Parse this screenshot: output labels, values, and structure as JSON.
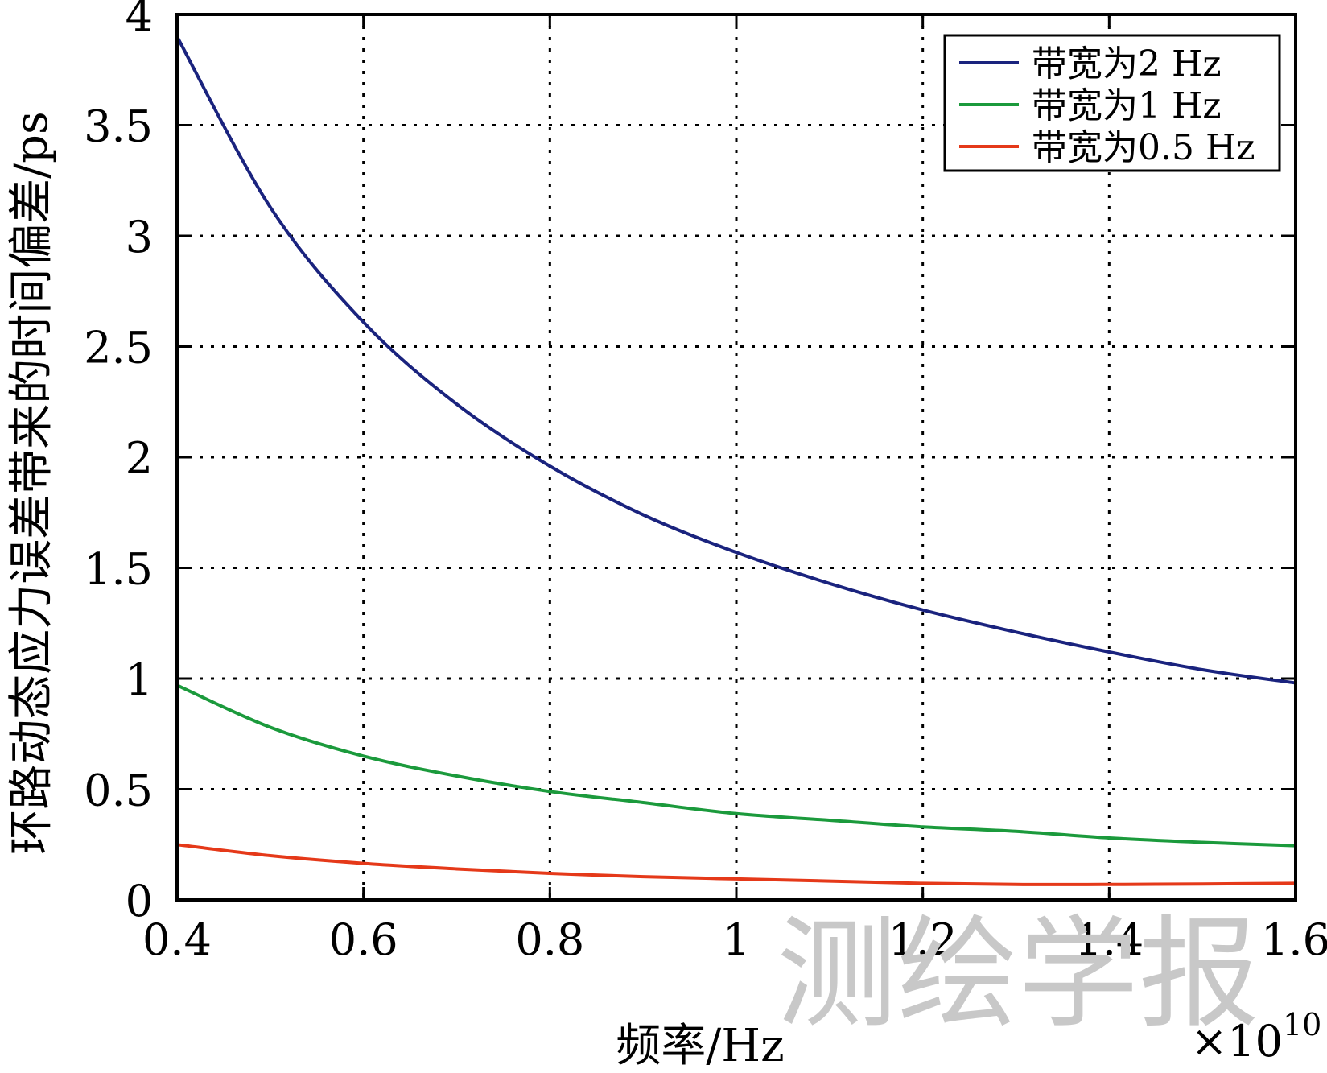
{
  "chart_data": {
    "type": "line",
    "title": "",
    "xlabel": "频率/Hz",
    "ylabel": "环路动态应力误差带来的时间偏差/ps",
    "x_exponent_label": "×10",
    "x_exponent_power": "10",
    "xlim": [
      0.4,
      1.6
    ],
    "ylim": [
      0,
      4
    ],
    "xticks": [
      0.4,
      0.6,
      0.8,
      1.0,
      1.2,
      1.4,
      1.6
    ],
    "xtick_labels": [
      "0.4",
      "0.6",
      "0.8",
      "1",
      "1.2",
      "1.4",
      "1.6"
    ],
    "yticks": [
      0,
      0.5,
      1.0,
      1.5,
      2.0,
      2.5,
      3.0,
      3.5,
      4.0
    ],
    "ytick_labels": [
      "0",
      "0.5",
      "1",
      "1.5",
      "2",
      "2.5",
      "3",
      "3.5",
      "4"
    ],
    "grid": true,
    "legend_position": "top-right",
    "x": [
      0.4,
      0.5,
      0.6,
      0.7,
      0.8,
      0.9,
      1.0,
      1.1,
      1.2,
      1.3,
      1.4,
      1.5,
      1.6
    ],
    "series": [
      {
        "name": "带宽为2 Hz",
        "color": "#1a237e",
        "values": [
          3.9,
          3.13,
          2.61,
          2.24,
          1.96,
          1.74,
          1.57,
          1.43,
          1.31,
          1.21,
          1.12,
          1.04,
          0.98
        ]
      },
      {
        "name": "带宽为1 Hz",
        "color": "#1b9a3c",
        "values": [
          0.97,
          0.78,
          0.65,
          0.56,
          0.49,
          0.44,
          0.39,
          0.36,
          0.33,
          0.31,
          0.28,
          0.26,
          0.245
        ]
      },
      {
        "name": "带宽为0.5 Hz",
        "color": "#e53919",
        "values": [
          0.25,
          0.2,
          0.165,
          0.14,
          0.12,
          0.105,
          0.095,
          0.085,
          0.075,
          0.07,
          0.07,
          0.072,
          0.075
        ]
      }
    ]
  },
  "watermark": "测绘学报"
}
